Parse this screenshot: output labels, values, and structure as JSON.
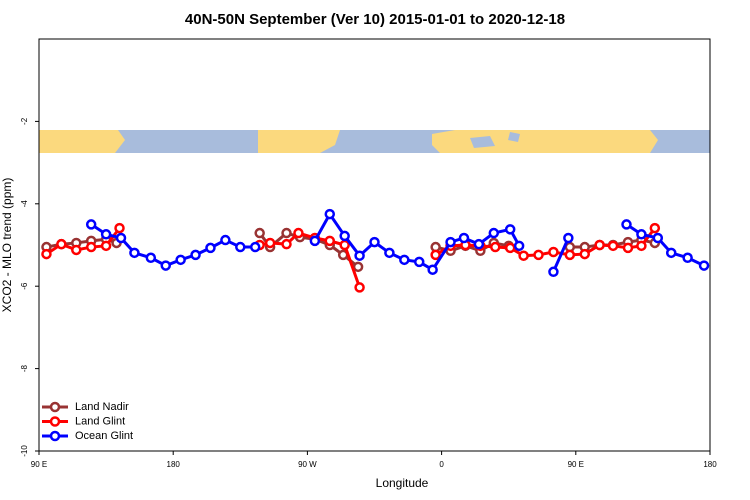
{
  "chart_data": {
    "type": "line",
    "title": "40N-50N September (Ver 10)   2015-01-01 to 2020-12-18",
    "xlabel": "Longitude",
    "ylabel": "XCO2 - MLO trend (ppm)",
    "xlim": [
      90,
      540
    ],
    "ylim": [
      -10,
      0
    ],
    "xticks": [
      {
        "value": 90,
        "label": "90 E"
      },
      180,
      {
        "value": 270,
        "label": "90 W"
      },
      {
        "value": 360,
        "label": "0"
      },
      {
        "value": 450,
        "label": "90 E"
      },
      {
        "value": 540,
        "label": "180"
      }
    ],
    "yticks": [
      -10,
      -8,
      -6,
      -4,
      -2
    ],
    "legend": "bottom-left",
    "series": [
      {
        "name": "Land Nadir",
        "color": "#993333",
        "x": [
          95,
          105,
          115,
          125,
          135,
          142,
          190,
          238,
          245,
          256,
          265,
          275,
          285,
          294,
          304,
          330,
          356,
          366,
          376,
          386,
          395,
          405,
          425,
          446,
          456,
          466,
          475,
          485,
          494,
          503
        ],
        "values": [
          -5.05,
          -4.98,
          -4.95,
          -4.9,
          -4.86,
          -4.95,
          null,
          -4.71,
          -5.05,
          -4.71,
          -4.81,
          -4.86,
          -5.0,
          -5.24,
          -5.53,
          null,
          -5.05,
          -5.14,
          -5.02,
          -5.14,
          -4.95,
          -5.02,
          null,
          -5.05,
          -5.05,
          -5.0,
          -5.0,
          -4.93,
          -4.88,
          -4.95
        ]
      },
      {
        "name": "Land Glint",
        "color": "#ff0000",
        "x": [
          95,
          105,
          115,
          125,
          135,
          144,
          190,
          238,
          245,
          256,
          264,
          275,
          285,
          295,
          305,
          330,
          356,
          366,
          376,
          386,
          396,
          406,
          415,
          425,
          435,
          446,
          456,
          466,
          475,
          485,
          494,
          503
        ],
        "values": [
          -5.22,
          -4.98,
          -5.12,
          -5.05,
          -5.02,
          -4.59,
          null,
          -5.0,
          -4.95,
          -4.98,
          -4.71,
          -4.83,
          -4.9,
          -5.0,
          -6.03,
          null,
          -5.24,
          -5.02,
          -5.0,
          -5.02,
          -5.05,
          -5.07,
          -5.26,
          -5.24,
          -5.17,
          -5.24,
          -5.22,
          -5.0,
          -5.02,
          -5.07,
          -5.02,
          -4.59
        ]
      },
      {
        "name": "Ocean Glint",
        "color": "#0000ff",
        "x": [
          125,
          135,
          145,
          154,
          165,
          175,
          185,
          195,
          205,
          215,
          225,
          235,
          255,
          275,
          285,
          295,
          305,
          315,
          325,
          335,
          345,
          354,
          366,
          375,
          385,
          395,
          406,
          412,
          425,
          435,
          445,
          465,
          484,
          494,
          505,
          514,
          525,
          536
        ],
        "values": [
          -4.5,
          -4.74,
          -4.83,
          -5.19,
          -5.31,
          -5.5,
          -5.36,
          -5.24,
          -5.07,
          -4.88,
          -5.05,
          -5.05,
          null,
          -4.9,
          -4.25,
          -4.78,
          -5.26,
          -4.93,
          -5.19,
          -5.36,
          -5.41,
          -5.6,
          -4.93,
          -4.83,
          -4.98,
          -4.71,
          -4.62,
          -5.02,
          null,
          -5.65,
          -4.83,
          null,
          -4.5,
          -4.74,
          -4.83,
          -5.19,
          -5.31,
          -5.5
        ]
      }
    ]
  }
}
